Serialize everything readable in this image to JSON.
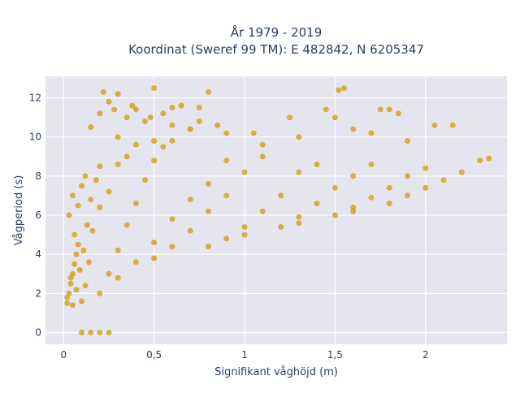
{
  "chart_data": {
    "type": "scatter",
    "title_line1": "År 1979 - 2019",
    "title_line2": "Koordinat (Sweref 99 TM): E 482842, N 6205347",
    "xlabel": "Signifikant våghöjd (m)",
    "ylabel": "Vågperiod (s)",
    "xlim": [
      -0.1,
      2.45
    ],
    "ylim": [
      -0.6,
      13.1
    ],
    "x_ticks": [
      0,
      0.5,
      1,
      1.5,
      2
    ],
    "x_tick_labels": [
      "0",
      "0,5",
      "1",
      "1,5",
      "2"
    ],
    "y_ticks": [
      0,
      2,
      4,
      6,
      8,
      10,
      12
    ],
    "y_tick_labels": [
      "0",
      "2",
      "4",
      "6",
      "8",
      "10",
      "12"
    ],
    "grid": true,
    "marker_color": "#d4a520",
    "plot_background": "#e5e5ef",
    "series": [
      {
        "x": [
          0.02,
          0.03,
          0.04,
          0.05,
          0.06,
          0.07,
          0.08,
          0.03,
          0.05,
          0.02,
          0.04,
          0.06,
          0.08,
          0.1,
          0.12,
          0.05,
          0.07,
          0.09,
          0.11,
          0.13,
          0.15,
          0.18,
          0.2,
          0.1,
          0.12,
          0.14,
          0.16,
          0.2,
          0.25,
          0.3,
          0.35,
          0.4,
          0.2,
          0.25,
          0.3,
          0.35,
          0.4,
          0.45,
          0.5,
          0.55,
          0.6,
          0.3,
          0.4,
          0.5,
          0.6,
          0.7,
          0.8,
          0.9,
          0.5,
          0.6,
          0.7,
          0.8,
          0.9,
          1.0,
          1.1,
          0.8,
          0.9,
          1.0,
          1.1,
          1.2,
          1.3,
          1.4,
          1.0,
          1.2,
          1.3,
          1.4,
          1.5,
          1.6,
          1.7,
          1.3,
          1.5,
          1.6,
          1.7,
          1.8,
          1.9,
          2.0,
          1.6,
          1.8,
          1.9,
          2.0,
          2.1,
          2.2,
          2.3,
          2.35,
          0.15,
          0.2,
          0.25,
          0.3,
          0.35,
          0.4,
          0.45,
          0.5,
          0.55,
          0.6,
          0.65,
          0.7,
          0.75,
          0.8,
          0.3,
          0.5,
          0.7,
          0.9,
          1.1,
          1.3,
          1.5,
          1.7,
          1.9,
          0.22,
          0.28,
          0.38,
          0.48,
          0.6,
          0.75,
          0.85,
          1.05,
          1.25,
          1.45,
          1.52,
          1.55,
          1.6,
          1.75,
          1.85,
          1.8,
          2.05,
          2.15,
          0.1,
          0.15,
          0.2,
          0.25
        ],
        "y": [
          1.5,
          2.0,
          2.5,
          3.0,
          3.5,
          4.0,
          4.5,
          6.0,
          7.0,
          1.8,
          2.8,
          5.0,
          6.5,
          7.5,
          8.0,
          1.4,
          2.2,
          3.2,
          4.2,
          5.5,
          6.8,
          7.8,
          8.5,
          1.6,
          2.4,
          3.6,
          5.2,
          6.4,
          7.2,
          8.6,
          9.0,
          9.6,
          2.0,
          3.0,
          4.2,
          5.5,
          6.6,
          7.8,
          8.8,
          9.5,
          9.8,
          2.8,
          3.6,
          4.6,
          5.8,
          6.8,
          7.6,
          8.8,
          3.8,
          4.4,
          5.2,
          6.2,
          7.0,
          8.2,
          9.0,
          4.4,
          4.8,
          5.4,
          6.2,
          7.0,
          8.2,
          8.6,
          5.0,
          5.4,
          5.9,
          6.6,
          7.4,
          8.0,
          8.6,
          5.6,
          6.0,
          6.4,
          6.9,
          7.4,
          8.0,
          8.4,
          6.2,
          6.6,
          7.0,
          7.4,
          7.8,
          8.2,
          8.8,
          8.9,
          10.5,
          11.2,
          11.8,
          12.2,
          11.0,
          11.4,
          10.8,
          12.5,
          11.2,
          10.6,
          11.6,
          10.4,
          11.5,
          12.3,
          10.0,
          9.8,
          10.4,
          10.2,
          9.6,
          10.0,
          11.0,
          10.2,
          9.8,
          12.3,
          11.4,
          11.6,
          11.0,
          11.5,
          10.8,
          10.6,
          10.2,
          11.0,
          11.4,
          12.4,
          12.5,
          10.4,
          11.4,
          11.2,
          11.4,
          10.6,
          10.6,
          0.0,
          0.0,
          0.0,
          0.0
        ]
      }
    ]
  }
}
